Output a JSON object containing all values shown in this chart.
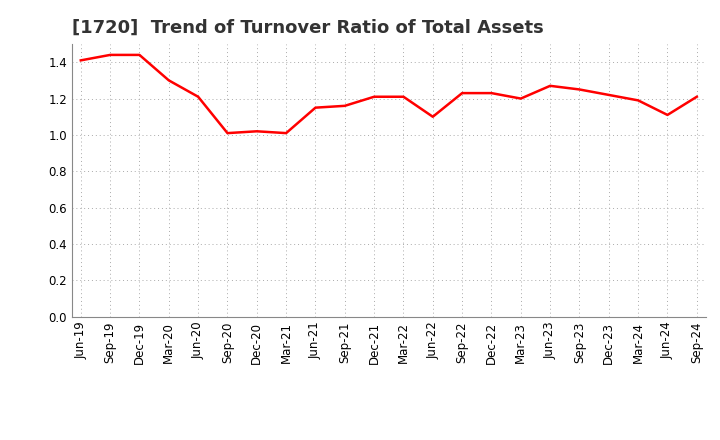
{
  "title": "[1720]  Trend of Turnover Ratio of Total Assets",
  "x_labels": [
    "Jun-19",
    "Sep-19",
    "Dec-19",
    "Mar-20",
    "Jun-20",
    "Sep-20",
    "Dec-20",
    "Mar-21",
    "Jun-21",
    "Sep-21",
    "Dec-21",
    "Mar-22",
    "Jun-22",
    "Sep-22",
    "Dec-22",
    "Mar-23",
    "Jun-23",
    "Sep-23",
    "Dec-23",
    "Mar-24",
    "Jun-24",
    "Sep-24"
  ],
  "y_values": [
    1.41,
    1.44,
    1.44,
    1.3,
    1.21,
    1.01,
    1.02,
    1.01,
    1.15,
    1.16,
    1.21,
    1.21,
    1.1,
    1.23,
    1.23,
    1.2,
    1.27,
    1.25,
    1.22,
    1.19,
    1.11,
    1.21
  ],
  "line_color": "#FF0000",
  "line_width": 1.8,
  "ylim": [
    0.0,
    1.5
  ],
  "yticks": [
    0.0,
    0.2,
    0.4,
    0.6,
    0.8,
    1.0,
    1.2,
    1.4
  ],
  "grid_color": "#aaaaaa",
  "background_color": "#ffffff",
  "title_fontsize": 13,
  "tick_fontsize": 8.5
}
